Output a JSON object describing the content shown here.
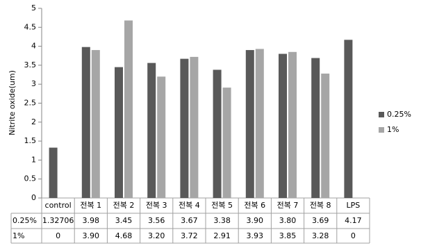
{
  "chart_data": {
    "type": "bar",
    "y_label": "Nitrite oxide(um)",
    "categories": [
      "control",
      "전복 1",
      "전복 2",
      "전복 3",
      "전복 4",
      "전복 5",
      "전복 6",
      "전복 7",
      "전복 8",
      "LPS"
    ],
    "series": [
      {
        "name": "0.25%",
        "color": "#595959",
        "values": [
          1.32706,
          3.98,
          3.45,
          3.56,
          3.67,
          3.38,
          3.9,
          3.8,
          3.69,
          4.17
        ],
        "value_labels": [
          "1.32706",
          "3.98",
          "3.45",
          "3.56",
          "3.67",
          "3.38",
          "3.90",
          "3.80",
          "3.69",
          "4.17"
        ]
      },
      {
        "name": "1%",
        "color": "#a6a6a6",
        "values": [
          0,
          3.9,
          4.68,
          3.2,
          3.72,
          2.91,
          3.93,
          3.85,
          3.28,
          0
        ],
        "value_labels": [
          "0",
          "3.90",
          "4.68",
          "3.20",
          "3.72",
          "2.91",
          "3.93",
          "3.85",
          "3.28",
          "0"
        ]
      }
    ],
    "ylim": [
      0,
      5
    ],
    "yticks": [
      0,
      0.5,
      1,
      1.5,
      2,
      2.5,
      3,
      3.5,
      4,
      4.5,
      5
    ],
    "legend": "right"
  }
}
